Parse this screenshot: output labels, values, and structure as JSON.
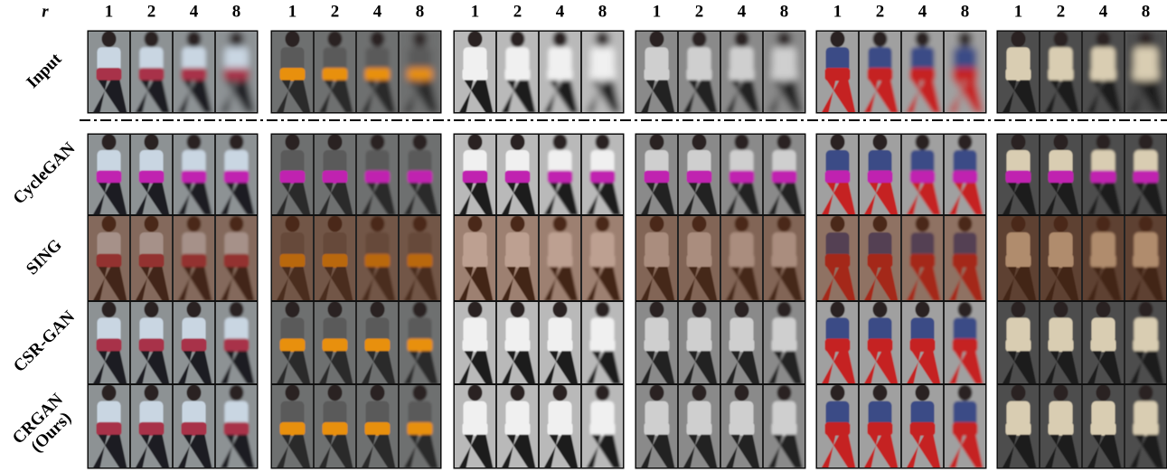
{
  "header": {
    "symbol": "r",
    "scales": [
      1,
      2,
      4,
      8
    ]
  },
  "rows": [
    [
      "Input"
    ],
    [
      "CycleGAN"
    ],
    [
      "SING"
    ],
    [
      "CSR-GAN"
    ],
    [
      "CRGAN",
      "(Ours)"
    ]
  ]
}
